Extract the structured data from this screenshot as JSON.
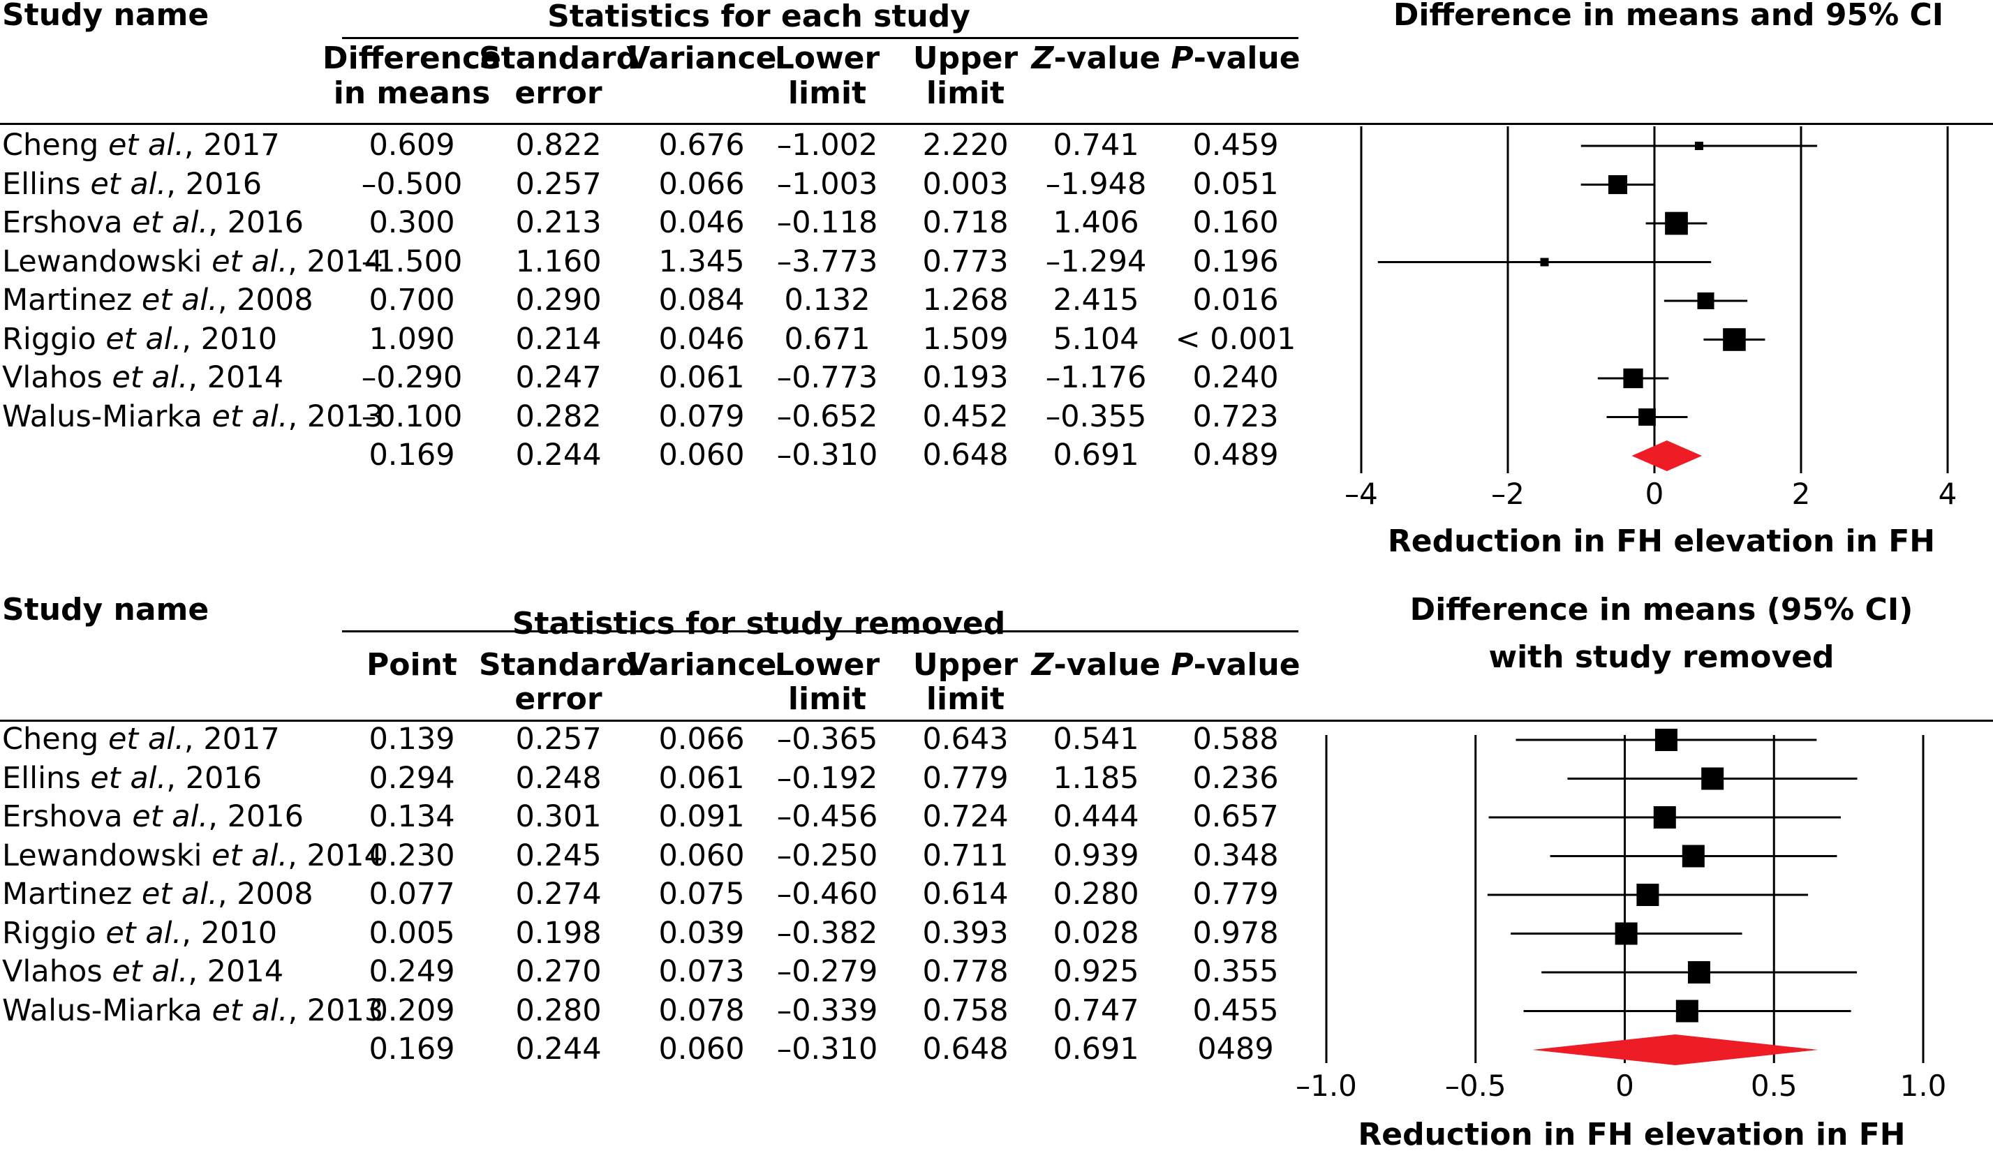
{
  "panels": [
    {
      "study_header": "Study name",
      "stats_header": "Statistics for each study",
      "plot_header": [
        "Difference in means and 95% CI"
      ],
      "columns": [
        [
          "Difference",
          "in means"
        ],
        [
          "Standard",
          "error"
        ],
        [
          "Variance"
        ],
        [
          "Lower",
          "limit"
        ],
        [
          "Upper",
          "limit"
        ],
        [
          "Z-value"
        ],
        [
          "P-value"
        ]
      ],
      "rows": [
        {
          "name": "Cheng et al., 2017",
          "cells": [
            "0.609",
            "0.822",
            "0.676",
            "–1.002",
            "2.220",
            "0.741",
            "0.459"
          ]
        },
        {
          "name": "Ellins et al., 2016",
          "cells": [
            "–0.500",
            "0.257",
            "0.066",
            "–1.003",
            "0.003",
            "–1.948",
            "0.051"
          ]
        },
        {
          "name": "Ershova et al., 2016",
          "cells": [
            "0.300",
            "0.213",
            "0.046",
            "–0.118",
            "0.718",
            "1.406",
            "0.160"
          ]
        },
        {
          "name": "Lewandowski et al., 2014",
          "cells": [
            "–1.500",
            "1.160",
            "1.345",
            "–3.773",
            "0.773",
            "–1.294",
            "0.196"
          ]
        },
        {
          "name": "Martinez et al., 2008",
          "cells": [
            "0.700",
            "0.290",
            "0.084",
            "0.132",
            "1.268",
            "2.415",
            "0.016"
          ]
        },
        {
          "name": "Riggio et al., 2010",
          "cells": [
            "1.090",
            "0.214",
            "0.046",
            "0.671",
            "1.509",
            "5.104",
            "< 0.001"
          ]
        },
        {
          "name": "Vlahos et al., 2014",
          "cells": [
            "–0.290",
            "0.247",
            "0.061",
            "–0.773",
            "0.193",
            "–1.176",
            "0.240"
          ]
        },
        {
          "name": "Walus-Miarka et al., 2013",
          "cells": [
            "–0.100",
            "0.282",
            "0.079",
            "–0.652",
            "0.452",
            "–0.355",
            "0.723"
          ]
        }
      ],
      "summary_cells": [
        "0.169",
        "0.244",
        "0.060",
        "–0.310",
        "0.648",
        "0.691",
        "0.489"
      ],
      "x_tick_labels": [
        "–4",
        "–2",
        "0",
        "2",
        "4"
      ],
      "xlabel": "Reduction in FH elevation in FH"
    },
    {
      "study_header": "Study name",
      "stats_header": "Statistics for study removed",
      "plot_header": [
        "Difference in means (95% CI)",
        "with study removed"
      ],
      "columns": [
        [
          "Point"
        ],
        [
          "Standard",
          "error"
        ],
        [
          "Variance"
        ],
        [
          "Lower",
          "limit"
        ],
        [
          "Upper",
          "limit"
        ],
        [
          "Z-value"
        ],
        [
          "P-value"
        ]
      ],
      "rows": [
        {
          "name": "Cheng et al., 2017",
          "cells": [
            "0.139",
            "0.257",
            "0.066",
            "–0.365",
            "0.643",
            "0.541",
            "0.588"
          ]
        },
        {
          "name": "Ellins et al., 2016",
          "cells": [
            "0.294",
            "0.248",
            "0.061",
            "–0.192",
            "0.779",
            "1.185",
            "0.236"
          ]
        },
        {
          "name": "Ershova et al., 2016",
          "cells": [
            "0.134",
            "0.301",
            "0.091",
            "–0.456",
            "0.724",
            "0.444",
            "0.657"
          ]
        },
        {
          "name": "Lewandowski et al., 2014",
          "cells": [
            "0.230",
            "0.245",
            "0.060",
            "–0.250",
            "0.711",
            "0.939",
            "0.348"
          ]
        },
        {
          "name": "Martinez et al., 2008",
          "cells": [
            "0.077",
            "0.274",
            "0.075",
            "–0.460",
            "0.614",
            "0.280",
            "0.779"
          ]
        },
        {
          "name": "Riggio et al., 2010",
          "cells": [
            "0.005",
            "0.198",
            "0.039",
            "–0.382",
            "0.393",
            "0.028",
            "0.978"
          ]
        },
        {
          "name": "Vlahos et al., 2014",
          "cells": [
            "0.249",
            "0.270",
            "0.073",
            "–0.279",
            "0.778",
            "0.925",
            "0.355"
          ]
        },
        {
          "name": "Walus-Miarka et al., 2013",
          "cells": [
            "0.209",
            "0.280",
            "0.078",
            "–0.339",
            "0.758",
            "0.747",
            "0.455"
          ]
        }
      ],
      "summary_cells": [
        "0.169",
        "0.244",
        "0.060",
        "–0.310",
        "0.648",
        "0.691",
        "0489"
      ],
      "x_tick_labels": [
        "–1.0",
        "–0.5",
        "0",
        "0.5",
        "1.0"
      ],
      "xlabel": "Reduction in FH elevation in FH"
    }
  ],
  "chart_data": [
    {
      "type": "forest",
      "title": "Difference in means and 95% CI",
      "xlabel": "Reduction in FH elevation in FH",
      "xlim": [
        -4,
        4
      ],
      "xticks": [
        -4,
        -2,
        0,
        2,
        4
      ],
      "categories": [
        "Cheng et al., 2017",
        "Ellins et al., 2016",
        "Ershova et al., 2016",
        "Lewandowski et al., 2014",
        "Martinez et al., 2008",
        "Riggio et al., 2010",
        "Vlahos et al., 2014",
        "Walus-Miarka et al., 2013"
      ],
      "point": [
        0.609,
        -0.5,
        0.3,
        -1.5,
        0.7,
        1.09,
        -0.29,
        -0.1
      ],
      "lower": [
        -1.002,
        -1.003,
        -0.118,
        -3.773,
        0.132,
        0.671,
        -0.773,
        -0.652
      ],
      "upper": [
        2.22,
        0.003,
        0.718,
        0.773,
        1.268,
        1.509,
        0.193,
        0.452
      ],
      "standard_error": [
        0.822,
        0.257,
        0.213,
        1.16,
        0.29,
        0.214,
        0.247,
        0.282
      ],
      "summary": {
        "point": 0.169,
        "lower": -0.31,
        "upper": 0.648
      },
      "summary_color": "#ee1c25"
    },
    {
      "type": "forest",
      "title": "Difference in means (95% CI) with study removed",
      "xlabel": "Reduction in FH elevation in FH",
      "xlim": [
        -1.0,
        1.0
      ],
      "xticks": [
        -1.0,
        -0.5,
        0,
        0.5,
        1.0
      ],
      "categories": [
        "Cheng et al., 2017",
        "Ellins et al., 2016",
        "Ershova et al., 2016",
        "Lewandowski et al., 2014",
        "Martinez et al., 2008",
        "Riggio et al., 2010",
        "Vlahos et al., 2014",
        "Walus-Miarka et al., 2013"
      ],
      "point": [
        0.139,
        0.294,
        0.134,
        0.23,
        0.077,
        0.005,
        0.249,
        0.209
      ],
      "lower": [
        -0.365,
        -0.192,
        -0.456,
        -0.25,
        -0.46,
        -0.382,
        -0.279,
        -0.339
      ],
      "upper": [
        0.643,
        0.779,
        0.724,
        0.711,
        0.614,
        0.393,
        0.778,
        0.758
      ],
      "standard_error": [
        0.257,
        0.248,
        0.301,
        0.245,
        0.274,
        0.198,
        0.27,
        0.28
      ],
      "summary": {
        "point": 0.169,
        "lower": -0.31,
        "upper": 0.648
      },
      "summary_color": "#ee1c25"
    }
  ]
}
